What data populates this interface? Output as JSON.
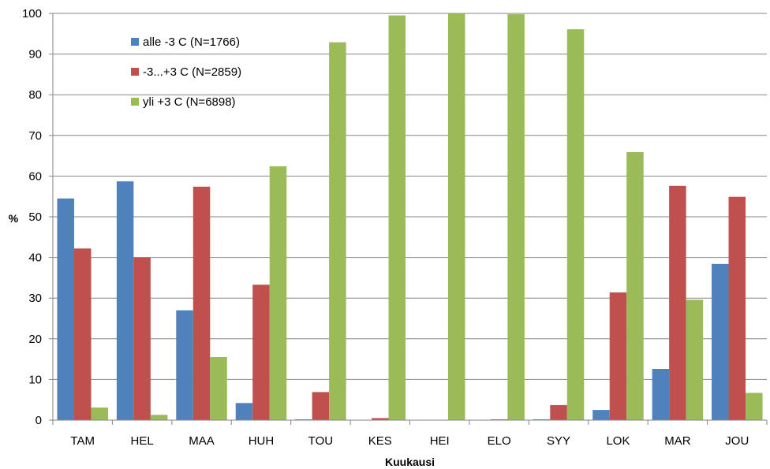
{
  "chart_data": {
    "type": "bar",
    "title": "",
    "xlabel": "Kuukausi",
    "ylabel": "%",
    "ylim": [
      0,
      100
    ],
    "ytick_step": 10,
    "grid": true,
    "legend_position": "top-left",
    "categories": [
      "TAM",
      "HEL",
      "MAA",
      "HUH",
      "TOU",
      "KES",
      "HEI",
      "ELO",
      "SYY",
      "LOK",
      "MAR",
      "JOU"
    ],
    "series": [
      {
        "name": "alle -3 C (N=1766)",
        "color": "#4F81BD",
        "values": [
          54.5,
          58.7,
          27.0,
          4.2,
          0.2,
          0.0,
          0.0,
          0.0,
          0.2,
          2.5,
          12.6,
          38.4
        ]
      },
      {
        "name": "-3...+3 C (N=2859)",
        "color": "#C0504D",
        "values": [
          42.2,
          40.0,
          57.4,
          33.3,
          6.9,
          0.5,
          0.0,
          0.2,
          3.7,
          31.4,
          57.6,
          54.9
        ]
      },
      {
        "name": "yli +3 C (N=6898)",
        "color": "#9BBB59",
        "values": [
          3.1,
          1.3,
          15.5,
          62.4,
          92.9,
          99.5,
          100.0,
          99.8,
          96.1,
          65.9,
          29.6,
          6.7
        ]
      }
    ]
  }
}
